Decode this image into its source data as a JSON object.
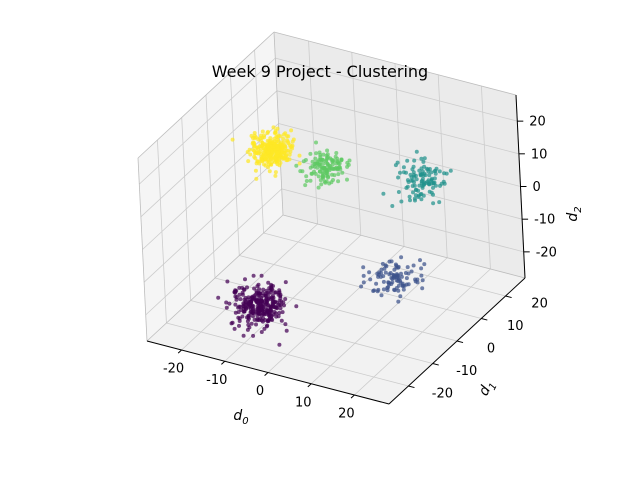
{
  "chart_data": {
    "type": "scatter",
    "projection": "3d",
    "title": "Week 9 Project - Clustering",
    "xlabel": "d_0",
    "ylabel": "d_1",
    "zlabel": "d_2",
    "axis_label_parts": {
      "x": {
        "base": "d",
        "sub": "0"
      },
      "y": {
        "base": "d",
        "sub": "1"
      },
      "z": {
        "base": "d",
        "sub": "2"
      }
    },
    "xlim": [
      -28,
      28
    ],
    "ylim": [
      -28,
      28
    ],
    "zlim": [
      -28,
      28
    ],
    "xticks": [
      "-20",
      "-10",
      "0",
      "10",
      "20"
    ],
    "yticks": [
      "-20",
      "-10",
      "0",
      "10",
      "20"
    ],
    "zticks": [
      "-20",
      "-10",
      "0",
      "10",
      "20"
    ],
    "xtick_values": [
      -20,
      -10,
      0,
      10,
      20
    ],
    "ytick_values": [
      -20,
      -10,
      0,
      10,
      20
    ],
    "ztick_values": [
      -20,
      -10,
      0,
      10,
      20
    ],
    "grid": true,
    "colormap": "viridis",
    "series": [
      {
        "color": "#440154",
        "center": [
          -12,
          -10,
          -24
        ],
        "spread": 2.6,
        "count": 300
      },
      {
        "color": "#3b528b",
        "center": [
          17,
          -5,
          -10
        ],
        "spread": 2.4,
        "count": 95
      },
      {
        "color": "#21918c",
        "center": [
          12,
          16,
          5
        ],
        "spread": 2.4,
        "count": 110
      },
      {
        "color": "#5ec962",
        "center": [
          -6,
          9,
          7
        ],
        "spread": 2.2,
        "count": 130
      },
      {
        "color": "#fde725",
        "center": [
          -18,
          8,
          9
        ],
        "spread": 2.1,
        "count": 290
      }
    ]
  }
}
